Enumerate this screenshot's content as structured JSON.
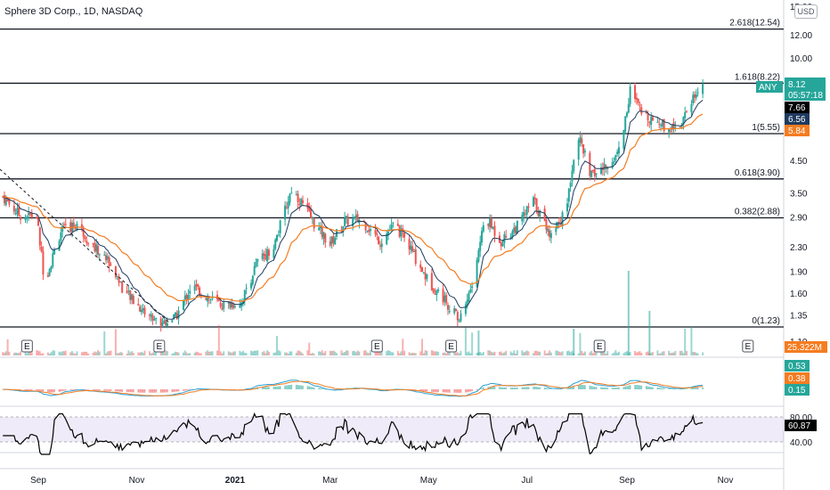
{
  "header": {
    "title": "Sphere 3D Corp., 1D, NASDAQ",
    "currency_button": "USD"
  },
  "chart_data": {
    "type": "candlestick",
    "title": "Sphere 3D Corp., 1D, NASDAQ",
    "price_axis": {
      "scale": "log",
      "ticks": [
        "15.00",
        "12.00",
        "10.00",
        "6.00",
        "4.50",
        "3.50",
        "2.90",
        "2.30",
        "1.90",
        "1.60",
        "1.35",
        "1.10"
      ]
    },
    "time_axis": {
      "ticks": [
        "Sep",
        "Nov",
        "2021",
        "Mar",
        "May",
        "Jul",
        "Sep",
        "Nov"
      ]
    },
    "fib_levels": [
      {
        "label": "2.618(12.54)",
        "price": 12.54
      },
      {
        "label": "1.618(8.22)",
        "price": 8.22
      },
      {
        "label": "1(5.55)",
        "price": 5.55
      },
      {
        "label": "0.618(3.90)",
        "price": 3.9
      },
      {
        "label": "0.382(2.88)",
        "price": 2.88
      },
      {
        "label": "0(1.23)",
        "price": 1.23
      }
    ],
    "price_badges": [
      {
        "text": "ANY",
        "value": "8.12",
        "sub": "05:57:18",
        "color": "#26a69a"
      },
      {
        "text": "",
        "value": "7.66",
        "color": "#000000"
      },
      {
        "text": "",
        "value": "6.56",
        "color": "#1e3a5f"
      },
      {
        "text": "",
        "value": "5.84",
        "color": "#f57c20"
      }
    ],
    "earnings_markers": [
      "E",
      "E",
      "E",
      "E",
      "E",
      "E"
    ],
    "volume_badge": "25.322M",
    "macd": {
      "values": [
        "0.53",
        "0.38",
        "0.15"
      ],
      "colors": [
        "#26a69a",
        "#f57c20",
        "#26a69a"
      ]
    },
    "rsi": {
      "value": "60.87",
      "levels": [
        "80.00",
        "40.00"
      ]
    },
    "price_path": [
      [
        "2020-08-10",
        3.4
      ],
      [
        "2020-08-20",
        2.95
      ],
      [
        "2020-08-31",
        2.9
      ],
      [
        "2020-09-05",
        1.75
      ],
      [
        "2020-09-15",
        2.6
      ],
      [
        "2020-09-25",
        2.75
      ],
      [
        "2020-10-05",
        2.3
      ],
      [
        "2020-10-15",
        2.05
      ],
      [
        "2020-10-25",
        1.6
      ],
      [
        "2020-11-05",
        1.4
      ],
      [
        "2020-11-15",
        1.27
      ],
      [
        "2020-11-25",
        1.32
      ],
      [
        "2020-12-05",
        1.7
      ],
      [
        "2020-12-15",
        1.55
      ],
      [
        "2020-12-25",
        1.45
      ],
      [
        "2021-01-05",
        1.5
      ],
      [
        "2021-01-15",
        2.05
      ],
      [
        "2021-01-25",
        2.3
      ],
      [
        "2021-02-05",
        3.6
      ],
      [
        "2021-02-12",
        3.2
      ],
      [
        "2021-02-20",
        2.7
      ],
      [
        "2021-03-01",
        2.35
      ],
      [
        "2021-03-10",
        2.8
      ],
      [
        "2021-03-20",
        2.85
      ],
      [
        "2021-04-01",
        2.4
      ],
      [
        "2021-04-10",
        2.75
      ],
      [
        "2021-04-20",
        2.25
      ],
      [
        "2021-05-01",
        1.75
      ],
      [
        "2021-05-10",
        1.55
      ],
      [
        "2021-05-20",
        1.3
      ],
      [
        "2021-05-28",
        1.7
      ],
      [
        "2021-06-05",
        2.9
      ],
      [
        "2021-06-15",
        2.4
      ],
      [
        "2021-06-25",
        2.7
      ],
      [
        "2021-07-05",
        3.3
      ],
      [
        "2021-07-15",
        2.55
      ],
      [
        "2021-07-25",
        3.0
      ],
      [
        "2021-08-01",
        5.6
      ],
      [
        "2021-08-10",
        4.0
      ],
      [
        "2021-08-20",
        4.3
      ],
      [
        "2021-08-28",
        5.0
      ],
      [
        "2021-09-03",
        7.8
      ],
      [
        "2021-09-10",
        6.5
      ],
      [
        "2021-09-18",
        6.2
      ],
      [
        "2021-09-26",
        5.8
      ],
      [
        "2021-10-04",
        6.0
      ],
      [
        "2021-10-12",
        7.4
      ],
      [
        "2021-10-18",
        8.12
      ]
    ]
  }
}
